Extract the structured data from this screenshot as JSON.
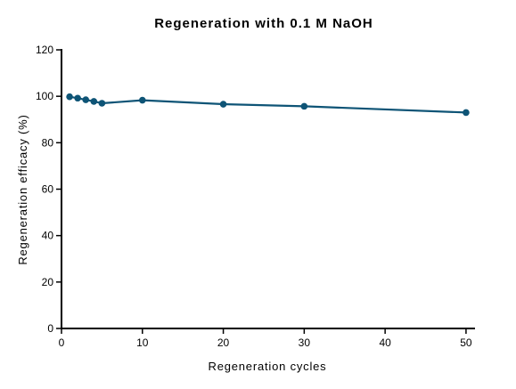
{
  "chart_data": {
    "type": "line",
    "title": "Regeneration with 0.1 M NaOH",
    "xlabel": "Regeneration cycles",
    "ylabel": "Regeneration efficacy (%)",
    "xlim": [
      0,
      51
    ],
    "ylim": [
      0,
      120
    ],
    "xticks": [
      0,
      10,
      20,
      30,
      40,
      50
    ],
    "yticks": [
      0,
      20,
      40,
      60,
      80,
      100,
      120
    ],
    "grid": false,
    "series": [
      {
        "color": "#0e5476",
        "x": [
          1,
          2,
          3,
          4,
          5,
          10,
          20,
          30,
          50
        ],
        "y": [
          99.8,
          99.2,
          98.5,
          97.8,
          97.0,
          98.3,
          96.6,
          95.7,
          93.0
        ]
      }
    ]
  }
}
